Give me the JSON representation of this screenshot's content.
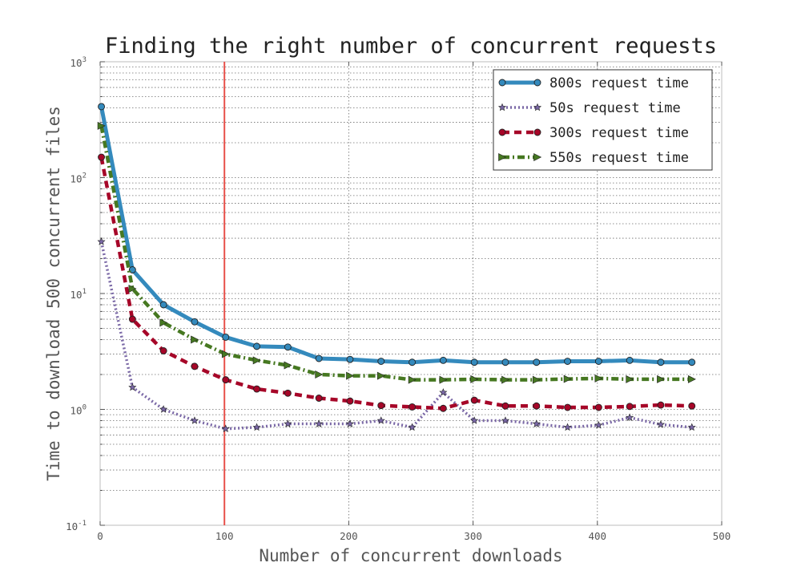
{
  "chart_data": {
    "type": "line",
    "title": "Finding the right number of concurrent requests",
    "xlabel": "Number of concurrent downloads",
    "ylabel": "Time to download 500 concurrent files",
    "xlim": [
      0,
      500
    ],
    "ylim": [
      0.1,
      1000
    ],
    "yscale": "log",
    "grid": true,
    "legend_position": "top-right",
    "xticks": [
      "0",
      "100",
      "200",
      "300",
      "400",
      "500"
    ],
    "yticks": [
      {
        "base": "10",
        "exp": "-1"
      },
      {
        "base": "10",
        "exp": "0"
      },
      {
        "base": "10",
        "exp": "1"
      },
      {
        "base": "10",
        "exp": "2"
      },
      {
        "base": "10",
        "exp": "3"
      }
    ],
    "vline": {
      "x": 100,
      "color": "#e8504a"
    },
    "x": [
      1,
      26,
      51,
      76,
      101,
      126,
      151,
      176,
      201,
      226,
      251,
      276,
      301,
      326,
      351,
      376,
      401,
      426,
      451,
      476
    ],
    "series": [
      {
        "name": "800s request time",
        "color": "#348abd",
        "style": "solid",
        "marker": "circle",
        "values": [
          410,
          16,
          8,
          5.7,
          4.2,
          3.5,
          3.45,
          2.75,
          2.7,
          2.6,
          2.55,
          2.65,
          2.55,
          2.55,
          2.55,
          2.6,
          2.6,
          2.65,
          2.55,
          2.55
        ]
      },
      {
        "name": "50s request time",
        "color": "#7a68a6",
        "style": "dotted",
        "marker": "star",
        "values": [
          28,
          1.55,
          1.0,
          0.8,
          0.68,
          0.7,
          0.75,
          0.75,
          0.75,
          0.8,
          0.7,
          1.4,
          0.8,
          0.8,
          0.75,
          0.7,
          0.73,
          0.85,
          0.74,
          0.7
        ]
      },
      {
        "name": "300s request time",
        "color": "#a60628",
        "style": "dashed",
        "marker": "circle",
        "values": [
          150,
          6,
          3.2,
          2.35,
          1.8,
          1.5,
          1.38,
          1.25,
          1.18,
          1.08,
          1.05,
          1.02,
          1.2,
          1.07,
          1.07,
          1.04,
          1.04,
          1.06,
          1.09,
          1.07
        ]
      },
      {
        "name": "550s request time",
        "color": "#467821",
        "style": "dashdot",
        "marker": "triangle-right",
        "values": [
          280,
          11,
          5.6,
          4.0,
          3.0,
          2.65,
          2.4,
          2.0,
          1.95,
          1.95,
          1.8,
          1.8,
          1.82,
          1.8,
          1.8,
          1.83,
          1.85,
          1.82,
          1.82,
          1.82
        ]
      }
    ]
  }
}
